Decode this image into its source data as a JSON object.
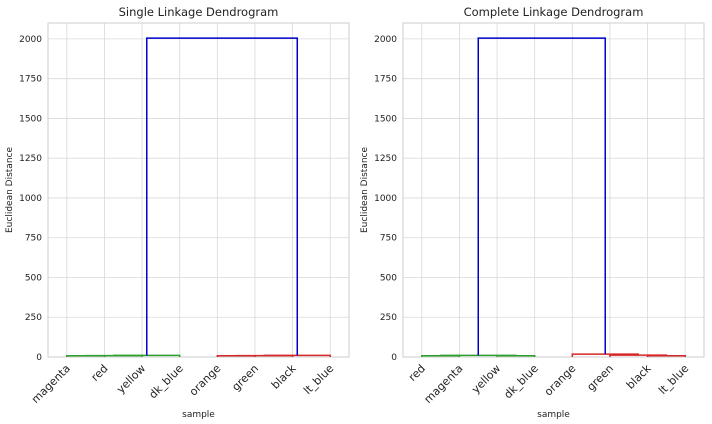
{
  "chart_data": [
    {
      "type": "dendrogram",
      "title": "Single Linkage Dendrogram",
      "xlabel": "sample",
      "ylabel": "Euclidean Distance",
      "ylim": [
        0,
        2100
      ],
      "yticks": [
        0,
        250,
        500,
        750,
        1000,
        1250,
        1500,
        1750,
        2000
      ],
      "grid": true,
      "leaves": [
        "magenta",
        "red",
        "yellow",
        "dk_blue",
        "orange",
        "green",
        "black",
        "lt_blue"
      ],
      "links": [
        {
          "color": "#2ca02c",
          "left": [
            0,
            0
          ],
          "right": [
            1,
            0
          ],
          "height": 8
        },
        {
          "color": "#2ca02c",
          "left": [
            0.5,
            8
          ],
          "right": [
            2,
            0
          ],
          "height": 9
        },
        {
          "color": "#2ca02c",
          "left": [
            1.25,
            9
          ],
          "right": [
            3,
            0
          ],
          "height": 10
        },
        {
          "color": "#d62728",
          "left": [
            4,
            0
          ],
          "right": [
            5,
            0
          ],
          "height": 8
        },
        {
          "color": "#d62728",
          "left": [
            4.5,
            8
          ],
          "right": [
            6,
            0
          ],
          "height": 9
        },
        {
          "color": "#d62728",
          "left": [
            5.25,
            9
          ],
          "right": [
            7,
            0
          ],
          "height": 10
        },
        {
          "color": "#0000cc",
          "left": [
            2.125,
            10
          ],
          "right": [
            6.125,
            10
          ],
          "height": 2005
        }
      ]
    },
    {
      "type": "dendrogram",
      "title": "Complete Linkage Dendrogram",
      "xlabel": "sample",
      "ylabel": "Euclidean Distance",
      "ylim": [
        0,
        2100
      ],
      "yticks": [
        0,
        250,
        500,
        750,
        1000,
        1250,
        1500,
        1750,
        2000
      ],
      "grid": true,
      "leaves": [
        "red",
        "magenta",
        "yellow",
        "dk_blue",
        "orange",
        "green",
        "black",
        "lt_blue"
      ],
      "links": [
        {
          "color": "#2ca02c",
          "left": [
            0,
            0
          ],
          "right": [
            1,
            0
          ],
          "height": 8
        },
        {
          "color": "#2ca02c",
          "left": [
            2,
            0
          ],
          "right": [
            3,
            0
          ],
          "height": 8
        },
        {
          "color": "#2ca02c",
          "left": [
            0.5,
            8
          ],
          "right": [
            2.5,
            8
          ],
          "height": 10
        },
        {
          "color": "#d62728",
          "left": [
            6,
            0
          ],
          "right": [
            7,
            0
          ],
          "height": 8
        },
        {
          "color": "#d62728",
          "left": [
            5,
            0
          ],
          "right": [
            6.5,
            8
          ],
          "height": 12
        },
        {
          "color": "#d62728",
          "left": [
            4,
            0
          ],
          "right": [
            5.75,
            12
          ],
          "height": 18
        },
        {
          "color": "#0000cc",
          "left": [
            1.5,
            10
          ],
          "right": [
            4.875,
            18
          ],
          "height": 2005
        }
      ]
    }
  ]
}
